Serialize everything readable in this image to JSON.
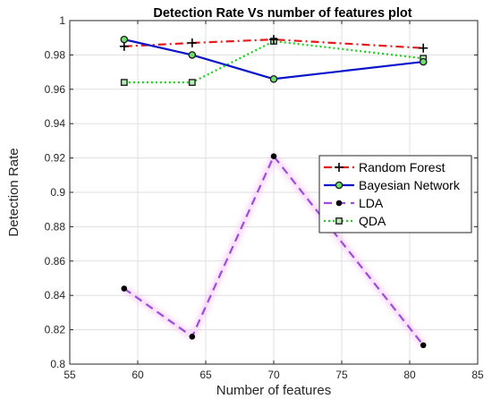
{
  "chart_data": {
    "type": "line",
    "title": "Detection Rate Vs number of features plot",
    "xlabel": "Number of features",
    "ylabel": "Detection Rate",
    "xlim": [
      55,
      85
    ],
    "ylim": [
      0.8,
      1.0
    ],
    "xticks": [
      55,
      60,
      65,
      70,
      75,
      80,
      85
    ],
    "yticks": [
      0.8,
      0.82,
      0.84,
      0.86,
      0.88,
      0.9,
      0.92,
      0.94,
      0.96,
      0.98,
      1
    ],
    "ytick_labels": [
      "0.8",
      "0.82",
      "0.84",
      "0.86",
      "0.88",
      "0.9",
      "0.92",
      "0.94",
      "0.96",
      "0.98",
      "1"
    ],
    "grid": true,
    "legend_position": "right",
    "x": [
      59,
      64,
      70,
      81
    ],
    "series": [
      {
        "name": "Random Forest",
        "values": [
          0.985,
          0.987,
          0.989,
          0.984
        ],
        "color": "#e41a1c",
        "dash": "9,4,2,4",
        "marker": "plus"
      },
      {
        "name": "Bayesian Network",
        "values": [
          0.989,
          0.98,
          0.966,
          0.976
        ],
        "color": "#0a14c8",
        "dash": "",
        "marker": "circle-open"
      },
      {
        "name": "LDA",
        "values": [
          0.844,
          0.816,
          0.921,
          0.811
        ],
        "color": "#9b4ddb",
        "dash": "9,6",
        "marker": "dot"
      },
      {
        "name": "QDA",
        "values": [
          0.964,
          0.964,
          0.988,
          0.978
        ],
        "color": "#16d216",
        "dash": "2,3",
        "marker": "square"
      }
    ]
  }
}
